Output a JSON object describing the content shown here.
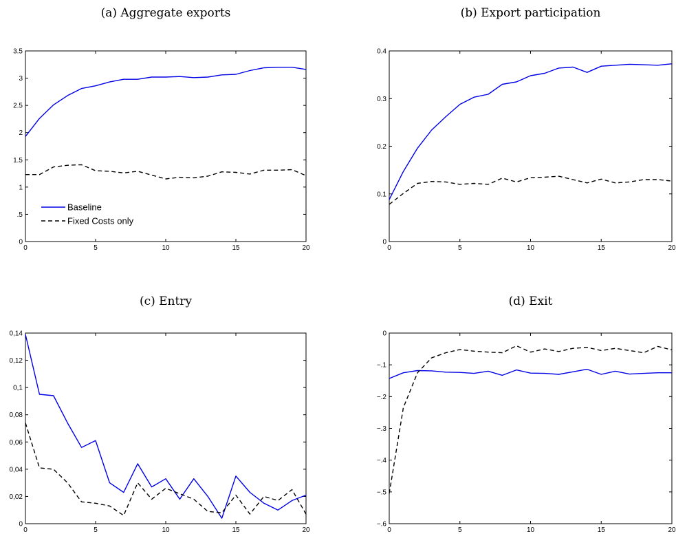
{
  "chart_data": [
    {
      "type": "line",
      "title": "(a) Aggregate exports",
      "xlabel": "",
      "ylabel": "",
      "xlim": [
        0,
        20
      ],
      "ylim": [
        0,
        3.5
      ],
      "xticks": [
        0,
        5,
        10,
        15,
        20
      ],
      "xtick_labels": [
        "0",
        "5",
        "10",
        "15",
        "20"
      ],
      "yticks": [
        0,
        0.5,
        1,
        1.5,
        2,
        2.5,
        3,
        3.5
      ],
      "ytick_labels": [
        "0",
        ".5",
        "1",
        "1.5",
        "2",
        "2.5",
        "3",
        "3.5"
      ],
      "grid": false,
      "legend": {
        "placement": "lower-left",
        "entries": [
          "Baseline",
          "Fixed Costs only"
        ]
      },
      "x": [
        0,
        1,
        2,
        3,
        4,
        5,
        6,
        7,
        8,
        9,
        10,
        11,
        12,
        13,
        14,
        15,
        16,
        17,
        18,
        19,
        20
      ],
      "series": [
        {
          "name": "Baseline",
          "color": "#0000e6",
          "style": "solid",
          "values": [
            1.93,
            2.26,
            2.51,
            2.68,
            2.81,
            2.86,
            2.93,
            2.98,
            2.98,
            3.02,
            3.02,
            3.03,
            3.01,
            3.02,
            3.06,
            3.07,
            3.14,
            3.19,
            3.2,
            3.2,
            3.16
          ]
        },
        {
          "name": "Fixed Costs only",
          "color": "#000000",
          "style": "dashed",
          "values": [
            1.23,
            1.23,
            1.37,
            1.4,
            1.41,
            1.3,
            1.29,
            1.26,
            1.29,
            1.22,
            1.15,
            1.18,
            1.17,
            1.2,
            1.28,
            1.27,
            1.24,
            1.31,
            1.31,
            1.32,
            1.21
          ]
        }
      ]
    },
    {
      "type": "line",
      "title": "(b) Export participation",
      "xlabel": "",
      "ylabel": "",
      "xlim": [
        0,
        20
      ],
      "ylim": [
        0,
        0.4
      ],
      "xticks": [
        0,
        5,
        10,
        15,
        20
      ],
      "xtick_labels": [
        "0",
        "5",
        "10",
        "15",
        "20"
      ],
      "yticks": [
        0,
        0.1,
        0.2,
        0.3,
        0.4
      ],
      "ytick_labels": [
        "0",
        "0.1",
        "0.2",
        "0.3",
        "0.4"
      ],
      "grid": false,
      "x": [
        0,
        1,
        2,
        3,
        4,
        5,
        6,
        7,
        8,
        9,
        10,
        11,
        12,
        13,
        14,
        15,
        16,
        17,
        18,
        19,
        20
      ],
      "series": [
        {
          "name": "Baseline",
          "color": "#0000e6",
          "style": "solid",
          "values": [
            0.088,
            0.147,
            0.196,
            0.234,
            0.262,
            0.288,
            0.303,
            0.309,
            0.33,
            0.335,
            0.348,
            0.353,
            0.364,
            0.366,
            0.355,
            0.368,
            0.37,
            0.372,
            0.371,
            0.37,
            0.373
          ]
        },
        {
          "name": "Fixed Costs only",
          "color": "#000000",
          "style": "dashed",
          "values": [
            0.078,
            0.101,
            0.122,
            0.126,
            0.125,
            0.12,
            0.122,
            0.12,
            0.133,
            0.125,
            0.134,
            0.135,
            0.137,
            0.13,
            0.123,
            0.131,
            0.123,
            0.125,
            0.13,
            0.13,
            0.127
          ]
        }
      ]
    },
    {
      "type": "line",
      "title": "(c) Entry",
      "xlabel": "",
      "ylabel": "",
      "xlim": [
        0,
        20
      ],
      "ylim": [
        0,
        0.14
      ],
      "xticks": [
        0,
        5,
        10,
        15,
        20
      ],
      "xtick_labels": [
        "0",
        "5",
        "10",
        "15",
        "20"
      ],
      "yticks": [
        0,
        0.02,
        0.04,
        0.06,
        0.08,
        0.1,
        0.12,
        0.14
      ],
      "ytick_labels": [
        "0",
        "0,02",
        "0,04",
        "0,06",
        "0,08",
        "0,1",
        "0,12",
        "0,14"
      ],
      "grid": false,
      "x": [
        0,
        1,
        2,
        3,
        4,
        5,
        6,
        7,
        8,
        9,
        10,
        11,
        12,
        13,
        14,
        15,
        16,
        17,
        18,
        19,
        20
      ],
      "series": [
        {
          "name": "Baseline",
          "color": "#0000e6",
          "style": "solid",
          "values": [
            0.139,
            0.095,
            0.094,
            0.074,
            0.056,
            0.061,
            0.03,
            0.023,
            0.044,
            0.027,
            0.033,
            0.018,
            0.033,
            0.02,
            0.004,
            0.035,
            0.023,
            0.015,
            0.01,
            0.017,
            0.021
          ]
        },
        {
          "name": "Fixed Costs only",
          "color": "#000000",
          "style": "dashed",
          "values": [
            0.074,
            0.041,
            0.04,
            0.03,
            0.016,
            0.015,
            0.013,
            0.006,
            0.03,
            0.018,
            0.026,
            0.022,
            0.018,
            0.009,
            0.008,
            0.021,
            0.007,
            0.02,
            0.017,
            0.025,
            0.007
          ]
        }
      ]
    },
    {
      "type": "line",
      "title": "(d) Exit",
      "xlabel": "",
      "ylabel": "",
      "xlim": [
        0,
        20
      ],
      "ylim": [
        -0.6,
        0
      ],
      "xticks": [
        0,
        5,
        10,
        15,
        20
      ],
      "xtick_labels": [
        "0",
        "5",
        "10",
        "15",
        "20"
      ],
      "yticks": [
        -0.6,
        -0.5,
        -0.4,
        -0.3,
        -0.2,
        -0.1,
        0
      ],
      "ytick_labels": [
        "−.6",
        "−.5",
        "−.4",
        "−.3",
        "−.2",
        "−.1",
        "0"
      ],
      "grid": false,
      "x": [
        0,
        1,
        2,
        3,
        4,
        5,
        6,
        7,
        8,
        9,
        10,
        11,
        12,
        13,
        14,
        15,
        16,
        17,
        18,
        19,
        20
      ],
      "series": [
        {
          "name": "Baseline",
          "color": "#0000e6",
          "style": "solid",
          "values": [
            -0.143,
            -0.125,
            -0.118,
            -0.119,
            -0.123,
            -0.124,
            -0.127,
            -0.12,
            -0.133,
            -0.116,
            -0.126,
            -0.127,
            -0.13,
            -0.122,
            -0.114,
            -0.13,
            -0.12,
            -0.129,
            -0.127,
            -0.125,
            -0.125
          ]
        },
        {
          "name": "Fixed Costs only",
          "color": "#000000",
          "style": "dashed",
          "values": [
            -0.505,
            -0.235,
            -0.125,
            -0.078,
            -0.062,
            -0.052,
            -0.057,
            -0.06,
            -0.062,
            -0.04,
            -0.06,
            -0.05,
            -0.058,
            -0.048,
            -0.045,
            -0.055,
            -0.048,
            -0.055,
            -0.062,
            -0.042,
            -0.053
          ]
        }
      ]
    }
  ]
}
